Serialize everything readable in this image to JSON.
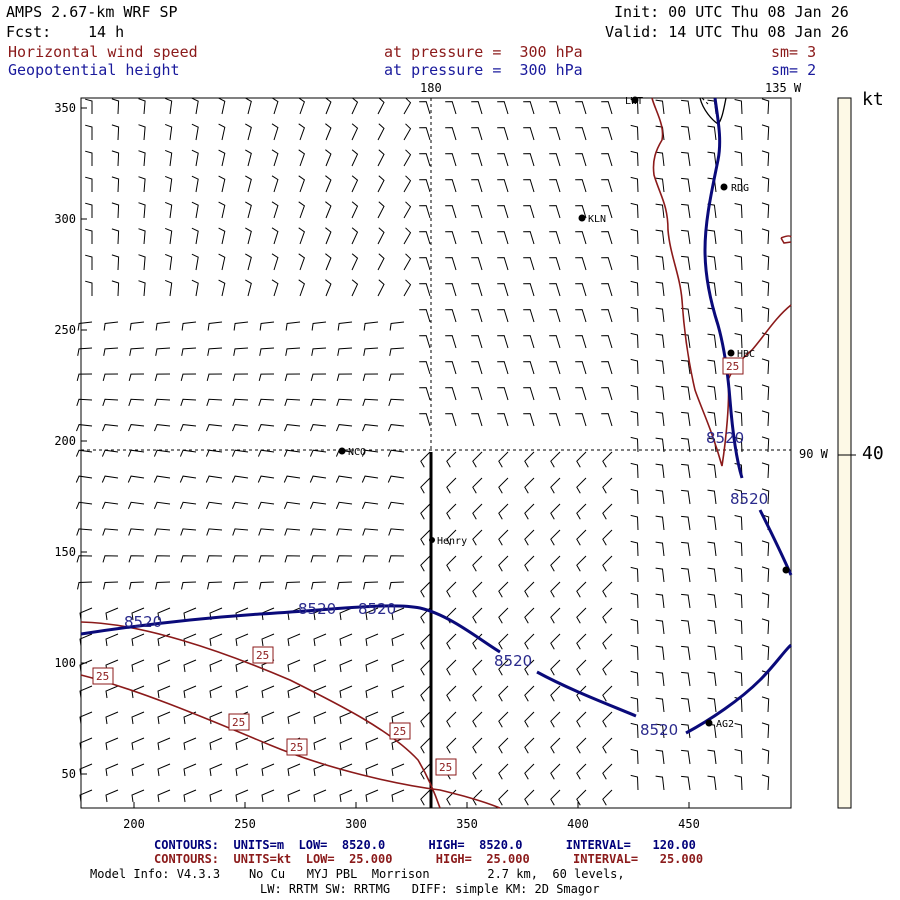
{
  "header": {
    "model": "AMPS 2.67-km WRF SP",
    "init": "Init: 00 UTC Thu 08 Jan 26",
    "fcst_label": "Fcst:",
    "fcst_value": "14 h",
    "valid": "Valid: 14 UTC Thu 08 Jan 26",
    "field1": "Horizontal wind speed",
    "field1_level": "at pressure =  300 hPa",
    "field1_sm": "sm= 3",
    "field2": "Geopotential height",
    "field2_level": "at pressure =  300 hPa",
    "field2_sm": "sm= 2"
  },
  "map": {
    "lon_label_180": "180",
    "lon_label_135w": "135 W",
    "lon_label_90w": "90 W",
    "x_ticks": [
      "200",
      "250",
      "300",
      "350",
      "400",
      "450"
    ],
    "y_ticks": [
      "350",
      "300",
      "250",
      "200",
      "150",
      "100",
      "50"
    ],
    "stations": [
      {
        "name": "LWT"
      },
      {
        "name": "RDG"
      },
      {
        "name": "KLN"
      },
      {
        "name": "HBC"
      },
      {
        "name": "NCO"
      },
      {
        "name": "Henry"
      },
      {
        "name": "AG2"
      }
    ],
    "height_labels": [
      "8520",
      "8520",
      "8520",
      "8520",
      "8520",
      "8520"
    ],
    "speed_labels": [
      "25",
      "25",
      "25",
      "25",
      "25",
      "25",
      "25"
    ],
    "colors": {
      "height_contour": "#0a0a7a",
      "speed_contour": "#8b1a1a",
      "barb": "#000000"
    }
  },
  "colorbar": {
    "unit": "kt",
    "value": "40",
    "fill": "#fdf9e6"
  },
  "footer": {
    "contours_height": "CONTOURS:  UNITS=m  LOW=  8520.0      HIGH=  8520.0      INTERVAL=   120.00",
    "contours_speed": "CONTOURS:  UNITS=kt  LOW=  25.000      HIGH=  25.000      INTERVAL=   25.000",
    "model_info": "Model Info: V4.3.3    No Cu   MYJ PBL  Morrison        2.7 km,  60 levels,",
    "model_info2": "LW: RRTM SW: RRTMG   DIFF: simple KM: 2D Smagor"
  }
}
